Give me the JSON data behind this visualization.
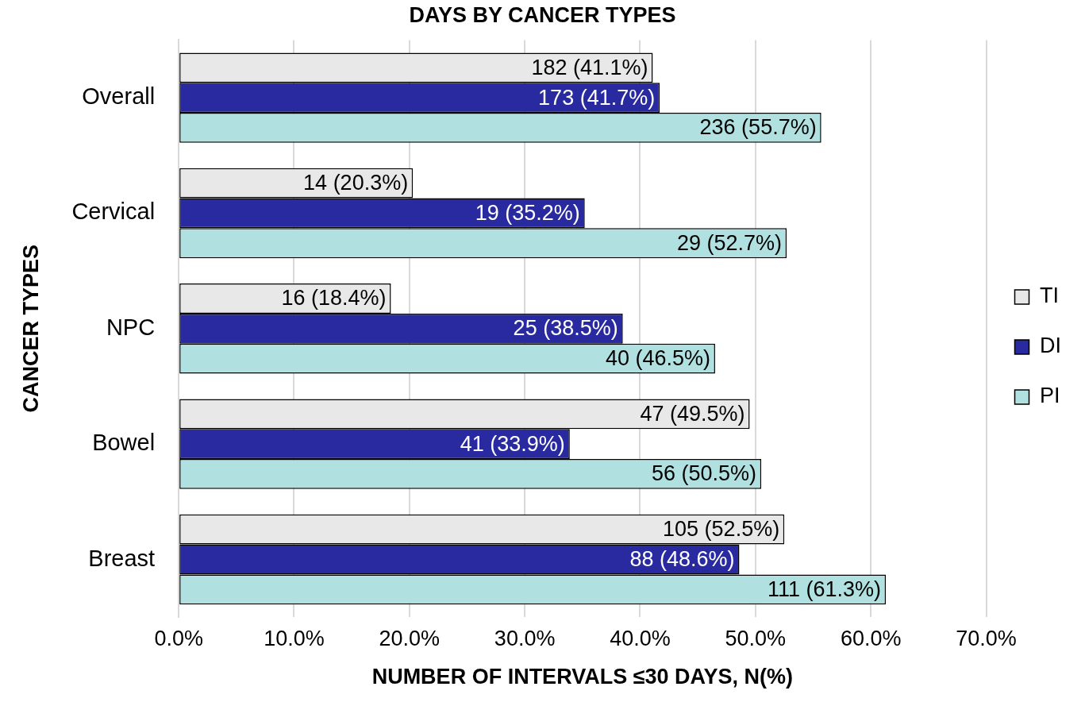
{
  "chart_data": {
    "type": "bar",
    "orientation": "horizontal",
    "title": "DAYS BY CANCER TYPES",
    "xlabel": "NUMBER OF INTERVALS ≤30 DAYS, N(%)",
    "ylabel": "CANCER TYPES",
    "categories": [
      "Overall",
      "Cervical",
      "NPC",
      "Bowel",
      "Breast"
    ],
    "series": [
      {
        "name": "TI",
        "color": "#e8e8e8",
        "values": [
          41.1,
          20.3,
          18.4,
          49.5,
          52.5
        ],
        "value_labels": [
          "182 (41.1%)",
          "14 (20.3%)",
          "16 (18.4%)",
          "47 (49.5%)",
          "105 (52.5%)"
        ]
      },
      {
        "name": "DI",
        "color": "#2a2aa0",
        "values": [
          41.7,
          35.2,
          38.5,
          33.9,
          48.6
        ],
        "value_labels": [
          "173 (41.7%)",
          "19 (35.2%)",
          "25 (38.5%)",
          "41 (33.9%)",
          "88 (48.6%)"
        ]
      },
      {
        "name": "PI",
        "color": "#b0e0e0",
        "values": [
          55.7,
          52.7,
          46.5,
          50.5,
          61.3
        ],
        "value_labels": [
          "236 (55.7%)",
          "29 (52.7%)",
          "40 (46.5%)",
          "56 (50.5%)",
          "111 (61.3%)"
        ]
      }
    ],
    "xlim": [
      0,
      70
    ],
    "xticks": [
      {
        "value": 0,
        "label": "0.0%"
      },
      {
        "value": 10,
        "label": "10.0%"
      },
      {
        "value": 20,
        "label": "20.0%"
      },
      {
        "value": 30,
        "label": "30.0%"
      },
      {
        "value": 40,
        "label": "40.0%"
      },
      {
        "value": 50,
        "label": "50.0%"
      },
      {
        "value": 60,
        "label": "60.0%"
      },
      {
        "value": 70,
        "label": "70.0%"
      }
    ],
    "grid": "x",
    "legend": "right"
  }
}
